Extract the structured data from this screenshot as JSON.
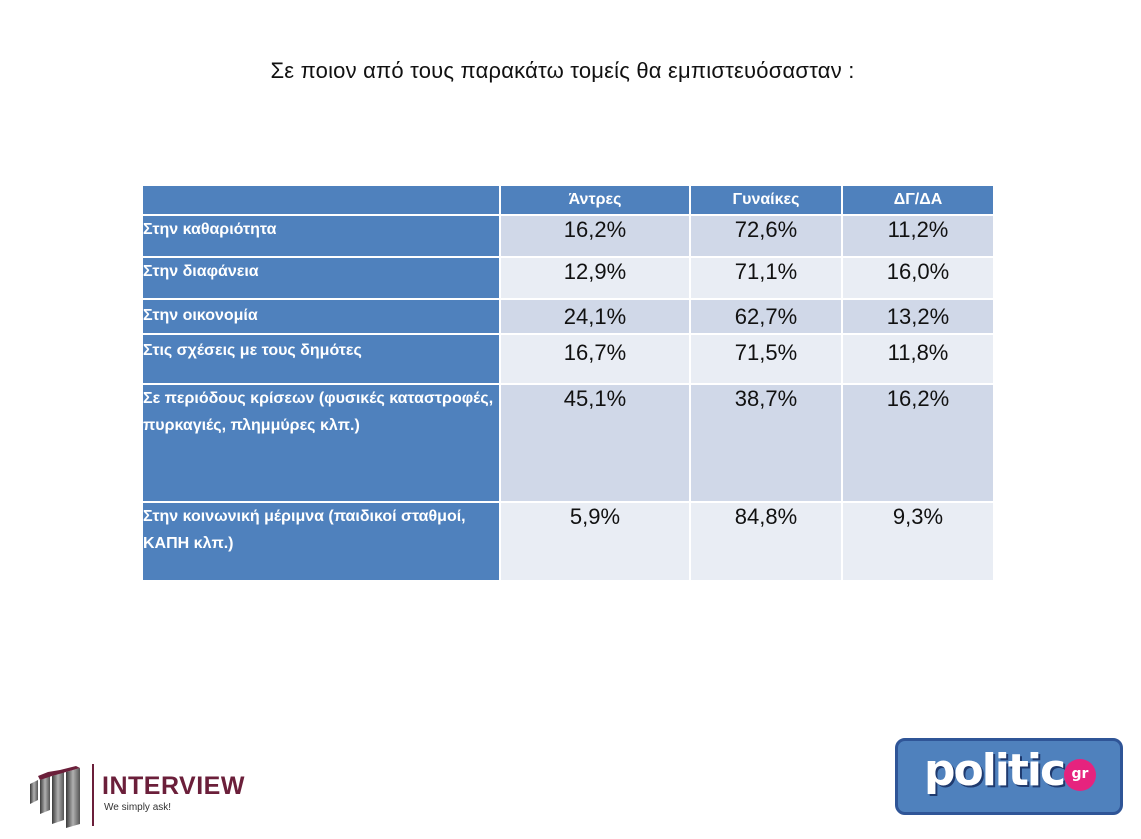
{
  "title": "Σε ποιον από τους παρακάτω τομείς θα εμπιστευόσασταν :",
  "table": {
    "headers": [
      "",
      "Άντρες",
      "Γυναίκες",
      "ΔΓ/ΔΑ"
    ],
    "rows": [
      {
        "label": "Στην καθαριότητα",
        "values": [
          "16,2%",
          "72,6%",
          "11,2%"
        ]
      },
      {
        "label": "Στην διαφάνεια",
        "values": [
          "12,9%",
          "71,1%",
          "16,0%"
        ]
      },
      {
        "label": "Στην οικονομία",
        "values": [
          "24,1%",
          "62,7%",
          "13,2%"
        ]
      },
      {
        "label": "Στις σχέσεις με τους δημότες",
        "values": [
          "16,7%",
          "71,5%",
          "11,8%"
        ]
      },
      {
        "label": "Σε περιόδους κρίσεων (φυσικές καταστροφές, πυρκαγιές, πλημμύρες κλπ.)",
        "values": [
          "45,1%",
          "38,7%",
          "16,2%"
        ]
      },
      {
        "label": "Στην κοινωνική μέριμνα (παιδικοί σταθμοί, ΚΑΠΗ κλπ.)",
        "values": [
          "5,9%",
          "84,8%",
          "9,3%"
        ]
      }
    ]
  },
  "logos": {
    "interview": {
      "name": "INTERVIEW",
      "tagline": "We simply ask!"
    },
    "politic": {
      "name": "politic",
      "suffix": "gr"
    }
  },
  "colors": {
    "header_blue": "#4f81bd",
    "row_dark": "#d0d8e8",
    "row_light": "#e9edf4",
    "interview_brand": "#6b1f3a",
    "politic_pink": "#e6237e"
  }
}
